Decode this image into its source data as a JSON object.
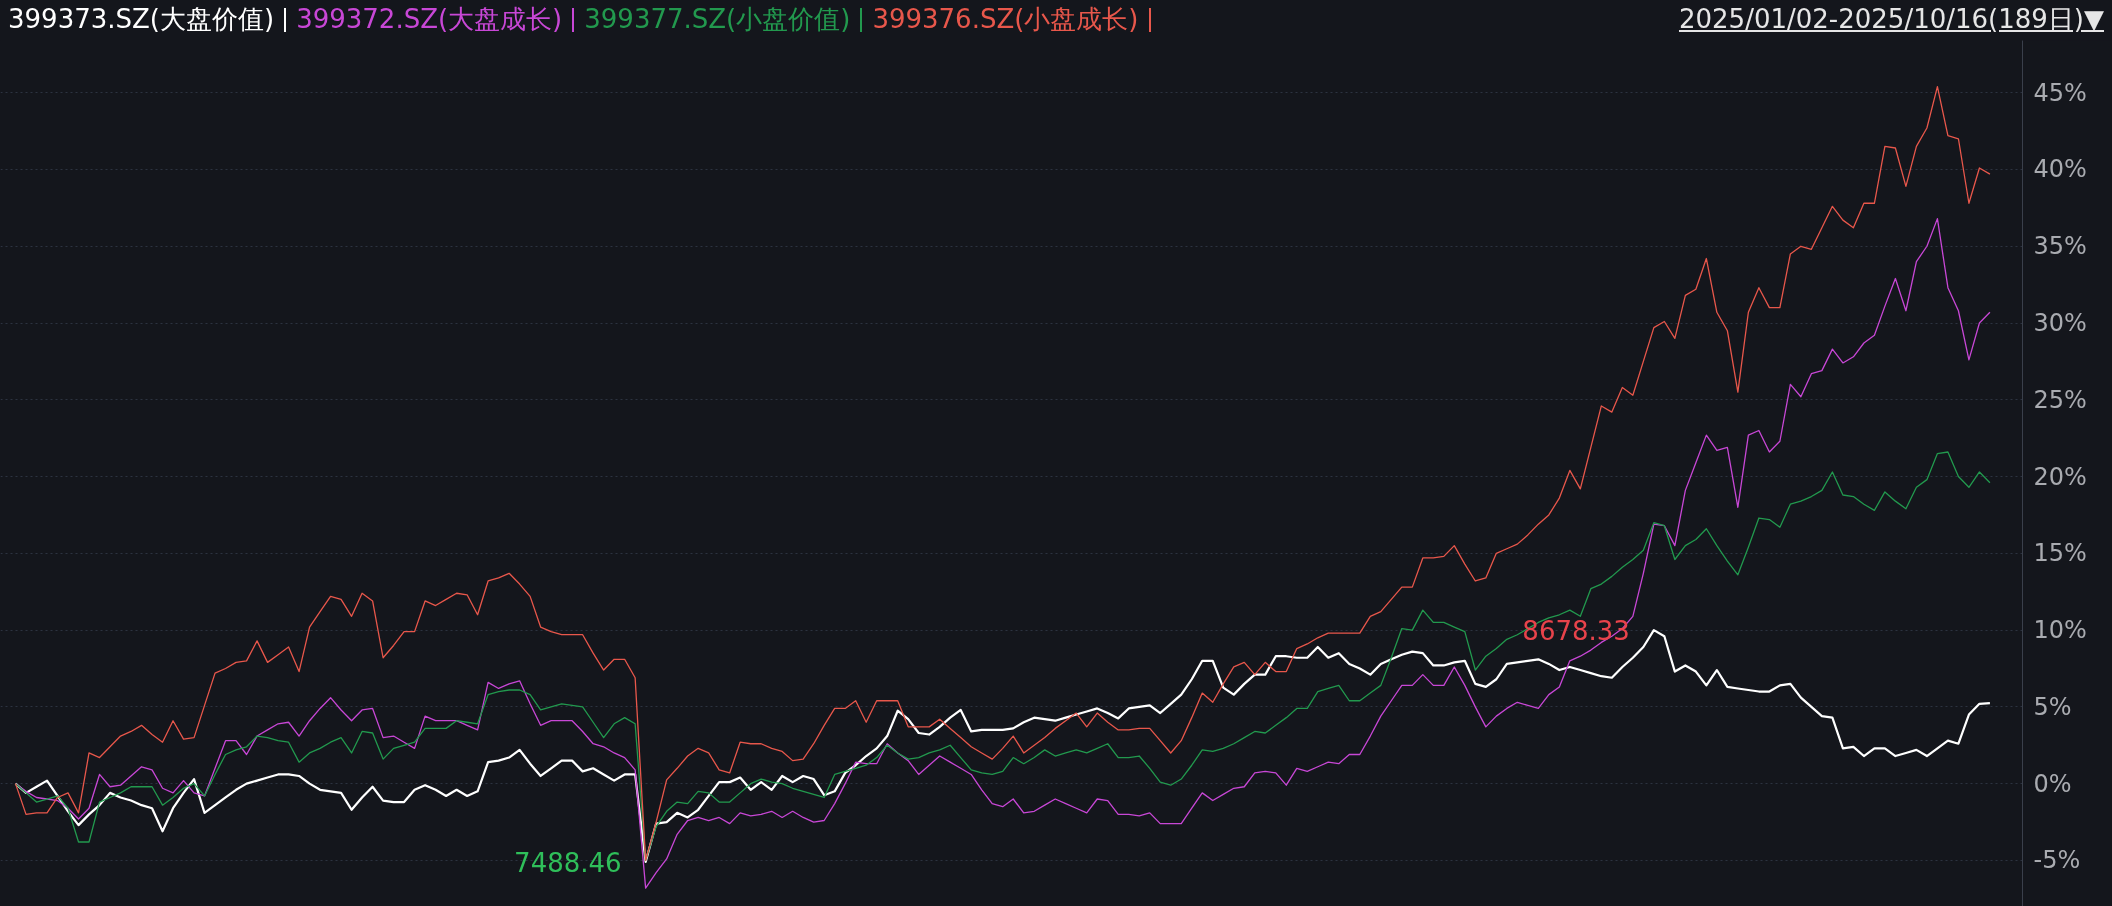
{
  "chart_data": {
    "type": "line",
    "subtitle": "2025/01/02-2025/10/16(189日)▼",
    "legend": "top left",
    "grid": "y",
    "tick_labels": "y",
    "line_style": "solid",
    "categories": [
      null,
      null,
      null,
      null,
      null,
      null,
      null,
      null,
      null,
      null,
      null,
      null,
      null,
      null,
      null,
      null,
      null,
      null,
      null,
      null,
      null,
      null,
      null,
      null,
      null,
      null,
      null,
      null,
      null,
      null,
      null,
      null,
      null,
      null,
      null,
      null,
      null,
      null,
      null,
      null,
      null,
      null,
      null,
      null,
      null,
      null,
      null,
      null,
      null,
      null,
      null,
      null,
      null,
      null,
      null,
      null,
      null,
      null,
      null,
      null,
      null,
      null,
      null,
      null,
      null,
      null,
      null,
      null,
      null,
      null,
      null,
      null,
      null,
      null,
      null,
      null,
      null,
      null,
      null,
      null,
      null,
      null,
      null,
      null,
      null,
      null,
      null,
      null,
      null,
      null,
      null,
      null,
      null,
      null,
      null,
      null,
      null,
      null,
      null,
      null,
      null,
      null,
      null,
      null,
      null,
      null,
      null,
      null,
      null,
      null,
      null,
      null,
      null,
      null,
      null,
      null,
      null,
      null,
      null,
      null,
      null,
      null,
      null,
      null,
      null,
      null,
      null,
      null,
      null,
      null,
      null,
      null,
      null,
      null,
      null,
      null,
      null,
      null,
      null,
      null,
      null,
      null,
      null,
      null,
      null,
      null,
      null,
      null,
      null,
      null,
      null,
      null,
      null,
      null,
      null,
      null,
      null,
      null,
      null,
      null,
      null,
      null,
      null,
      null,
      null,
      null,
      null,
      null,
      null,
      null,
      null,
      null,
      null,
      null,
      null,
      null,
      null,
      null,
      null,
      null,
      null,
      null,
      null,
      null,
      null,
      null,
      null,
      null,
      null
    ],
    "ylim": [
      -8,
      48.4
    ],
    "yticks": [
      {
        "value": -5,
        "label": "-5%"
      },
      {
        "value": 0,
        "label": "0%"
      },
      {
        "value": 5,
        "label": "5%"
      },
      {
        "value": 10,
        "label": "10%"
      },
      {
        "value": 15,
        "label": "15%"
      },
      {
        "value": 20,
        "label": "20%"
      },
      {
        "value": 25,
        "label": "25%"
      },
      {
        "value": 30,
        "label": "30%"
      },
      {
        "value": 35,
        "label": "35%"
      },
      {
        "value": 40,
        "label": "40%"
      },
      {
        "value": 45,
        "label": "45%"
      }
    ],
    "annotations": [
      "7488.46",
      "8678.33"
    ],
    "series": [
      {
        "name": "399373.SZ(大盘价值)",
        "color": "#ffffff",
        "values": [
          0,
          -0.6,
          -0.2,
          0.2,
          -0.8,
          -1.8,
          -2.7,
          -2.0,
          -1.4,
          -0.6,
          -0.9,
          -1.1,
          -1.4,
          -1.6,
          -3.1,
          -1.6,
          -0.6,
          0.3,
          -1.9,
          -1.4,
          -0.9,
          -0.4,
          0,
          0.2,
          0.4,
          0.6,
          0.6,
          0.5,
          0,
          -0.4,
          -0.5,
          -0.6,
          -1.7,
          -0.9,
          -0.2,
          -1.1,
          -1.2,
          -1.2,
          -0.4,
          -0.1,
          -0.4,
          -0.8,
          -0.4,
          -0.8,
          -0.5,
          1.4,
          1.5,
          1.7,
          2.2,
          1.3,
          0.5,
          1.0,
          1.5,
          1.5,
          0.8,
          1.0,
          0.6,
          0.2,
          0.6,
          0.6,
          -5.1,
          -2.6,
          -2.5,
          -1.9,
          -2.2,
          -1.7,
          -0.8,
          0.1,
          0.1,
          0.4,
          -0.4,
          0.1,
          -0.4,
          0.5,
          0.1,
          0.5,
          0.3,
          -0.75,
          -0.5,
          0.7,
          1.2,
          1.8,
          2.3,
          3.1,
          4.75,
          4.2,
          3.3,
          3.2,
          3.7,
          4.3,
          4.8,
          3.4,
          3.5,
          3.5,
          3.5,
          3.6,
          4.0,
          4.3,
          4.2,
          4.1,
          4.3,
          4.5,
          4.7,
          4.9,
          4.6,
          4.25,
          4.9,
          5.0,
          5.1,
          4.6,
          5.2,
          5.8,
          6.8,
          8.0,
          8.0,
          6.25,
          5.8,
          6.5,
          7.1,
          7.1,
          8.3,
          8.3,
          8.2,
          8.2,
          8.9,
          8.2,
          8.5,
          7.8,
          7.5,
          7.1,
          7.8,
          8.1,
          8.4,
          8.6,
          8.5,
          7.7,
          7.7,
          7.9,
          8.0,
          6.5,
          6.3,
          6.8,
          7.8,
          7.9,
          8.0,
          8.1,
          7.8,
          7.4,
          7.6,
          7.4,
          7.2,
          7.0,
          6.9,
          7.6,
          8.2,
          8.9,
          10.0,
          9.6,
          7.3,
          7.7,
          7.3,
          6.4,
          7.4,
          6.3,
          6.2,
          6.1,
          6.0,
          6.0,
          6.4,
          6.5,
          5.6,
          5.0,
          4.4,
          4.3,
          2.3,
          2.4,
          1.8,
          2.3,
          2.3,
          1.8,
          2.0,
          2.2,
          1.8,
          2.3,
          2.8,
          2.6,
          4.5,
          5.2,
          5.25
        ]
      },
      {
        "name": "399372.SZ(大盘成长)",
        "color": "#c847d6",
        "values": [
          0,
          -0.5,
          -0.9,
          -1.0,
          -1.1,
          -1.6,
          -2.3,
          -1.6,
          0.6,
          -0.2,
          -0.1,
          0.5,
          1.1,
          0.9,
          -0.3,
          -0.6,
          0.2,
          -0.6,
          -0.8,
          1.0,
          2.8,
          2.8,
          1.9,
          3.1,
          3.5,
          3.9,
          4.0,
          3.1,
          4.1,
          4.9,
          5.6,
          4.8,
          4.1,
          4.8,
          4.9,
          3.0,
          3.1,
          2.7,
          2.3,
          4.4,
          4.1,
          4.1,
          4.1,
          3.8,
          3.5,
          6.6,
          6.2,
          6.5,
          6.7,
          5.2,
          3.8,
          4.1,
          4.1,
          4.1,
          3.4,
          2.6,
          2.4,
          2.0,
          1.7,
          0.9,
          -6.8,
          -5.8,
          -4.9,
          -3.3,
          -2.4,
          -2.2,
          -2.4,
          -2.2,
          -2.6,
          -1.9,
          -2.1,
          -2.0,
          -1.8,
          -2.2,
          -1.8,
          -2.2,
          -2.5,
          -2.4,
          -1.3,
          0,
          1.4,
          1.3,
          1.3,
          2.6,
          2.0,
          1.5,
          0.6,
          1.2,
          1.8,
          1.4,
          1.0,
          0.6,
          -0.4,
          -1.3,
          -1.5,
          -1.0,
          -1.9,
          -1.8,
          -1.4,
          -1.0,
          -1.3,
          -1.6,
          -1.9,
          -1.0,
          -1.1,
          -2.0,
          -2.0,
          -2.1,
          -1.9,
          -2.6,
          -2.6,
          -2.6,
          -1.6,
          -0.6,
          -1.1,
          -0.7,
          -0.3,
          -0.2,
          0.7,
          0.8,
          0.7,
          -0.1,
          1.0,
          0.8,
          1.1,
          1.4,
          1.3,
          1.9,
          1.9,
          3.1,
          4.4,
          5.4,
          6.4,
          6.4,
          7.1,
          6.4,
          6.4,
          7.6,
          6.4,
          5.0,
          3.7,
          4.4,
          4.9,
          5.3,
          5.1,
          4.9,
          5.8,
          6.3,
          8.0,
          8.3,
          8.7,
          9.2,
          9.6,
          10.1,
          10.9,
          13.7,
          16.9,
          16.8,
          15.5,
          19.1,
          20.9,
          22.7,
          21.7,
          21.9,
          18.0,
          22.7,
          23.0,
          21.6,
          22.3,
          26.0,
          25.2,
          26.7,
          26.9,
          28.3,
          27.4,
          27.8,
          28.7,
          29.2,
          31.1,
          32.9,
          30.8,
          34.0,
          35.0,
          36.8,
          32.3,
          30.8,
          27.6,
          30.0,
          30.7
        ]
      },
      {
        "name": "399377.SZ(小盘价值)",
        "color": "#22994e",
        "values": [
          0,
          -0.6,
          -1.2,
          -1.0,
          -0.8,
          -1.6,
          -3.8,
          -3.8,
          -1.2,
          -0.9,
          -0.6,
          -0.2,
          -0.2,
          -0.2,
          -1.4,
          -0.9,
          -0.3,
          0,
          -0.8,
          0.6,
          1.9,
          2.2,
          2.4,
          3.1,
          3.0,
          2.8,
          2.7,
          1.4,
          2.0,
          2.3,
          2.7,
          3.0,
          2.0,
          3.4,
          3.3,
          1.6,
          2.3,
          2.5,
          2.7,
          3.6,
          3.6,
          3.6,
          4.1,
          4.0,
          3.9,
          5.8,
          6.0,
          6.1,
          6.1,
          5.8,
          4.8,
          5.0,
          5.2,
          5.1,
          5.0,
          4.0,
          3.0,
          3.9,
          4.3,
          3.9,
          -5.0,
          -2.8,
          -1.8,
          -1.2,
          -1.3,
          -0.5,
          -0.6,
          -1.2,
          -1.2,
          -0.6,
          0,
          0.3,
          0.1,
          0,
          -0.3,
          -0.5,
          -0.7,
          -0.9,
          0.6,
          0.8,
          1.0,
          1.2,
          1.7,
          2.5,
          2.0,
          1.6,
          1.7,
          2.0,
          2.2,
          2.5,
          1.7,
          0.9,
          0.7,
          0.6,
          0.8,
          1.7,
          1.3,
          1.7,
          2.2,
          1.8,
          2.0,
          2.2,
          2.0,
          2.3,
          2.6,
          1.7,
          1.7,
          1.8,
          1.0,
          0.1,
          -0.1,
          0.3,
          1.2,
          2.2,
          2.1,
          2.3,
          2.6,
          3.0,
          3.4,
          3.3,
          3.8,
          4.3,
          4.9,
          4.9,
          6.0,
          6.2,
          6.4,
          5.4,
          5.4,
          5.9,
          6.4,
          8.2,
          10.1,
          10.0,
          11.3,
          10.5,
          10.5,
          10.2,
          9.9,
          7.4,
          8.3,
          8.8,
          9.4,
          9.7,
          10.1,
          10.5,
          10.8,
          11.0,
          11.3,
          10.9,
          12.7,
          13.0,
          13.5,
          14.1,
          14.6,
          15.2,
          17.0,
          16.8,
          14.6,
          15.5,
          15.9,
          16.6,
          15.5,
          14.5,
          13.6,
          15.4,
          17.3,
          17.2,
          16.7,
          18.2,
          18.4,
          18.7,
          19.1,
          20.3,
          18.8,
          18.7,
          18.2,
          17.8,
          19.0,
          18.4,
          17.9,
          19.3,
          19.8,
          21.5,
          21.6,
          20.0,
          19.3,
          20.3,
          19.6
        ]
      },
      {
        "name": "399376.SZ(小盘成长)",
        "color": "#e8574b",
        "values": [
          0,
          -2,
          -1.9,
          -1.9,
          -0.9,
          -0.6,
          -1.9,
          2,
          1.7,
          2.4,
          3.1,
          3.4,
          3.8,
          3.2,
          2.7,
          4.1,
          2.9,
          3.0,
          5.1,
          7.2,
          7.5,
          7.9,
          8.0,
          9.3,
          7.9,
          8.4,
          8.9,
          7.3,
          10.2,
          11.2,
          12.2,
          12.0,
          10.9,
          12.4,
          11.9,
          8.2,
          9.0,
          9.9,
          9.9,
          11.9,
          11.6,
          12.0,
          12.4,
          12.3,
          11.0,
          13.2,
          13.4,
          13.7,
          13.0,
          12.2,
          10.2,
          9.9,
          9.7,
          9.7,
          9.7,
          8.5,
          7.4,
          8.1,
          8.1,
          6.9,
          -5.0,
          -2.5,
          0.25,
          1.0,
          1.8,
          2.3,
          2.0,
          0.9,
          0.7,
          2.7,
          2.6,
          2.6,
          2.3,
          2.1,
          1.5,
          1.6,
          2.6,
          3.8,
          4.9,
          4.9,
          5.4,
          4.0,
          5.4,
          5.4,
          5.4,
          3.7,
          3.7,
          3.7,
          4.2,
          3.6,
          3.0,
          2.4,
          2.0,
          1.6,
          2.3,
          3.1,
          2.0,
          2.5,
          3.0,
          3.6,
          4.1,
          4.6,
          3.7,
          4.6,
          4.0,
          3.5,
          3.5,
          3.6,
          3.6,
          2.8,
          2.0,
          2.8,
          4.3,
          5.9,
          5.3,
          6.5,
          7.6,
          7.9,
          7.1,
          7.9,
          7.3,
          7.3,
          8.8,
          9.1,
          9.5,
          9.8,
          9.8,
          9.8,
          9.8,
          10.9,
          11.2,
          12.0,
          12.8,
          12.8,
          14.7,
          14.7,
          14.8,
          15.5,
          14.3,
          13.2,
          13.4,
          15.0,
          15.3,
          15.6,
          16.2,
          16.9,
          17.5,
          18.6,
          20.4,
          19.2,
          21.9,
          24.6,
          24.2,
          25.8,
          25.3,
          27.5,
          29.7,
          30.1,
          29.0,
          31.8,
          32.2,
          34.2,
          30.7,
          29.5,
          25.5,
          30.7,
          32.3,
          31.0,
          31.0,
          34.5,
          35.0,
          34.8,
          36.2,
          37.6,
          36.7,
          36.2,
          37.8,
          37.8,
          41.5,
          41.4,
          38.9,
          41.5,
          42.7,
          45.4,
          42.2,
          42.0,
          37.8,
          40.1,
          39.7
        ]
      }
    ]
  }
}
